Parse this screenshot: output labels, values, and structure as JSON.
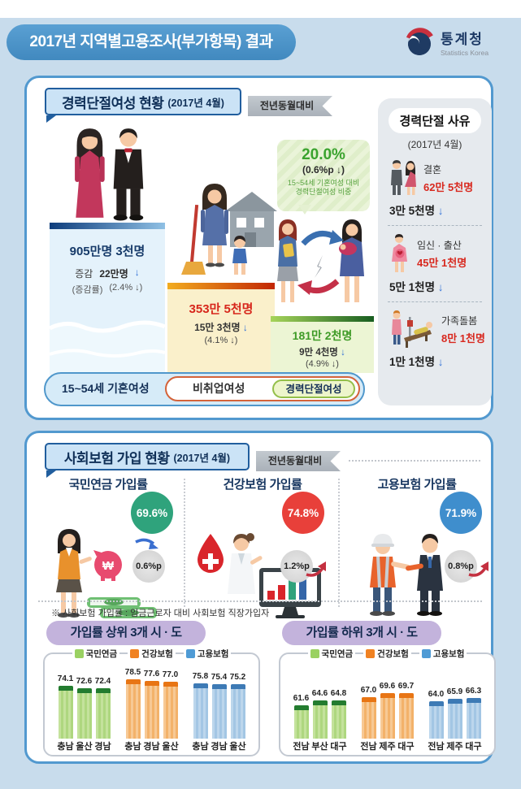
{
  "icons": {
    "down_arrow": "↓",
    "won": "₩"
  },
  "header": {
    "title": "2017년 지역별고용조사(부가항목) 결과",
    "agency": "통계청",
    "agency_sub": "Statistics Korea"
  },
  "panel1": {
    "title": "경력단절여성 현황",
    "date": "(2017년 4월)",
    "ribbon": "전년동월대비",
    "bubble": {
      "pct": "20.0%",
      "change": "(0.6%p ↓)",
      "desc1": "15~54세 기혼여성 대비",
      "desc2": "경력단절여성 비중"
    },
    "married": {
      "value": "905만명 3천명",
      "delta_label": "증감",
      "delta": "22만명",
      "rate_label": "(증감률)",
      "rate": "(2.4% ↓)",
      "footer": "15~54세 기혼여성"
    },
    "nonworking": {
      "value": "353만 5천명",
      "delta": "15만 3천명",
      "rate": "(4.1% ↓)",
      "footer": "비취업여성"
    },
    "interrupted": {
      "value": "181만 2천명",
      "delta": "9만 4천명",
      "rate": "(4.9% ↓)",
      "footer": "경력단절여성"
    },
    "reasons": {
      "title": "경력단절 사유",
      "date": "(2017년 4월)",
      "items": [
        {
          "label": "결혼",
          "value": "62만 5천명",
          "delta": "3만 5천명"
        },
        {
          "label": "임신 · 출산",
          "value": "45만 1천명",
          "delta": "5만 1천명"
        },
        {
          "label": "가족돌봄",
          "value": "8만 1천명",
          "delta": "1만 1천명"
        }
      ]
    }
  },
  "panel2": {
    "title": "사회보험 가입 현황",
    "date": "(2017년 4월)",
    "ribbon": "전년동월대비",
    "insurances": [
      {
        "label": "국민연금 가입률",
        "rate": "69.6%",
        "change": "0.6%p",
        "direction": "down",
        "bubble_color": "#2fa37c"
      },
      {
        "label": "건강보험 가입률",
        "rate": "74.8%",
        "change": "1.2%p",
        "direction": "up",
        "bubble_color": "#e8403a"
      },
      {
        "label": "고용보험 가입률",
        "rate": "71.9%",
        "change": "0.8%p",
        "direction": "up",
        "bubble_color": "#3f8ecd"
      }
    ],
    "footnote": "※ 사회보험 가입률 : 임금근로자 대비 사회보험 직장가입자"
  },
  "chart_data": [
    {
      "type": "bar",
      "title": "가입률 상위 3개 시 · 도",
      "ylim": [
        40,
        80
      ],
      "legend_position": "top",
      "series": [
        {
          "name": "국민연금",
          "color": "#9ad162",
          "body1": "#c4e29c",
          "body2": "#aed77f",
          "cap": "#237c2f",
          "categories": [
            "충남",
            "울산",
            "경남"
          ],
          "values": [
            74.1,
            72.6,
            72.4
          ]
        },
        {
          "name": "건강보험",
          "color": "#f08222",
          "body1": "#f7c995",
          "body2": "#f3b26a",
          "cap": "#e87514",
          "categories": [
            "충남",
            "경남",
            "울산"
          ],
          "values": [
            78.5,
            77.6,
            77.0
          ]
        },
        {
          "name": "고용보험",
          "color": "#4f9bd5",
          "body1": "#bcd6ec",
          "body2": "#a3c6e4",
          "cap": "#3d7ab5",
          "categories": [
            "충남",
            "경남",
            "울산"
          ],
          "values": [
            75.8,
            75.4,
            75.2
          ]
        }
      ]
    },
    {
      "type": "bar",
      "title": "가입률 하위 3개 시 · 도",
      "ylim": [
        40,
        80
      ],
      "legend_position": "top",
      "series": [
        {
          "name": "국민연금",
          "color": "#9ad162",
          "body1": "#c4e29c",
          "body2": "#aed77f",
          "cap": "#237c2f",
          "categories": [
            "전남",
            "부산",
            "대구"
          ],
          "values": [
            61.6,
            64.6,
            64.8
          ]
        },
        {
          "name": "건강보험",
          "color": "#f08222",
          "body1": "#f7c995",
          "body2": "#f3b26a",
          "cap": "#e87514",
          "categories": [
            "전남",
            "제주",
            "대구"
          ],
          "values": [
            67.0,
            69.6,
            69.7
          ]
        },
        {
          "name": "고용보험",
          "color": "#4f9bd5",
          "body1": "#bcd6ec",
          "body2": "#a3c6e4",
          "cap": "#3d7ab5",
          "categories": [
            "전남",
            "제주",
            "대구"
          ],
          "values": [
            64.0,
            65.9,
            66.3
          ]
        }
      ]
    }
  ]
}
